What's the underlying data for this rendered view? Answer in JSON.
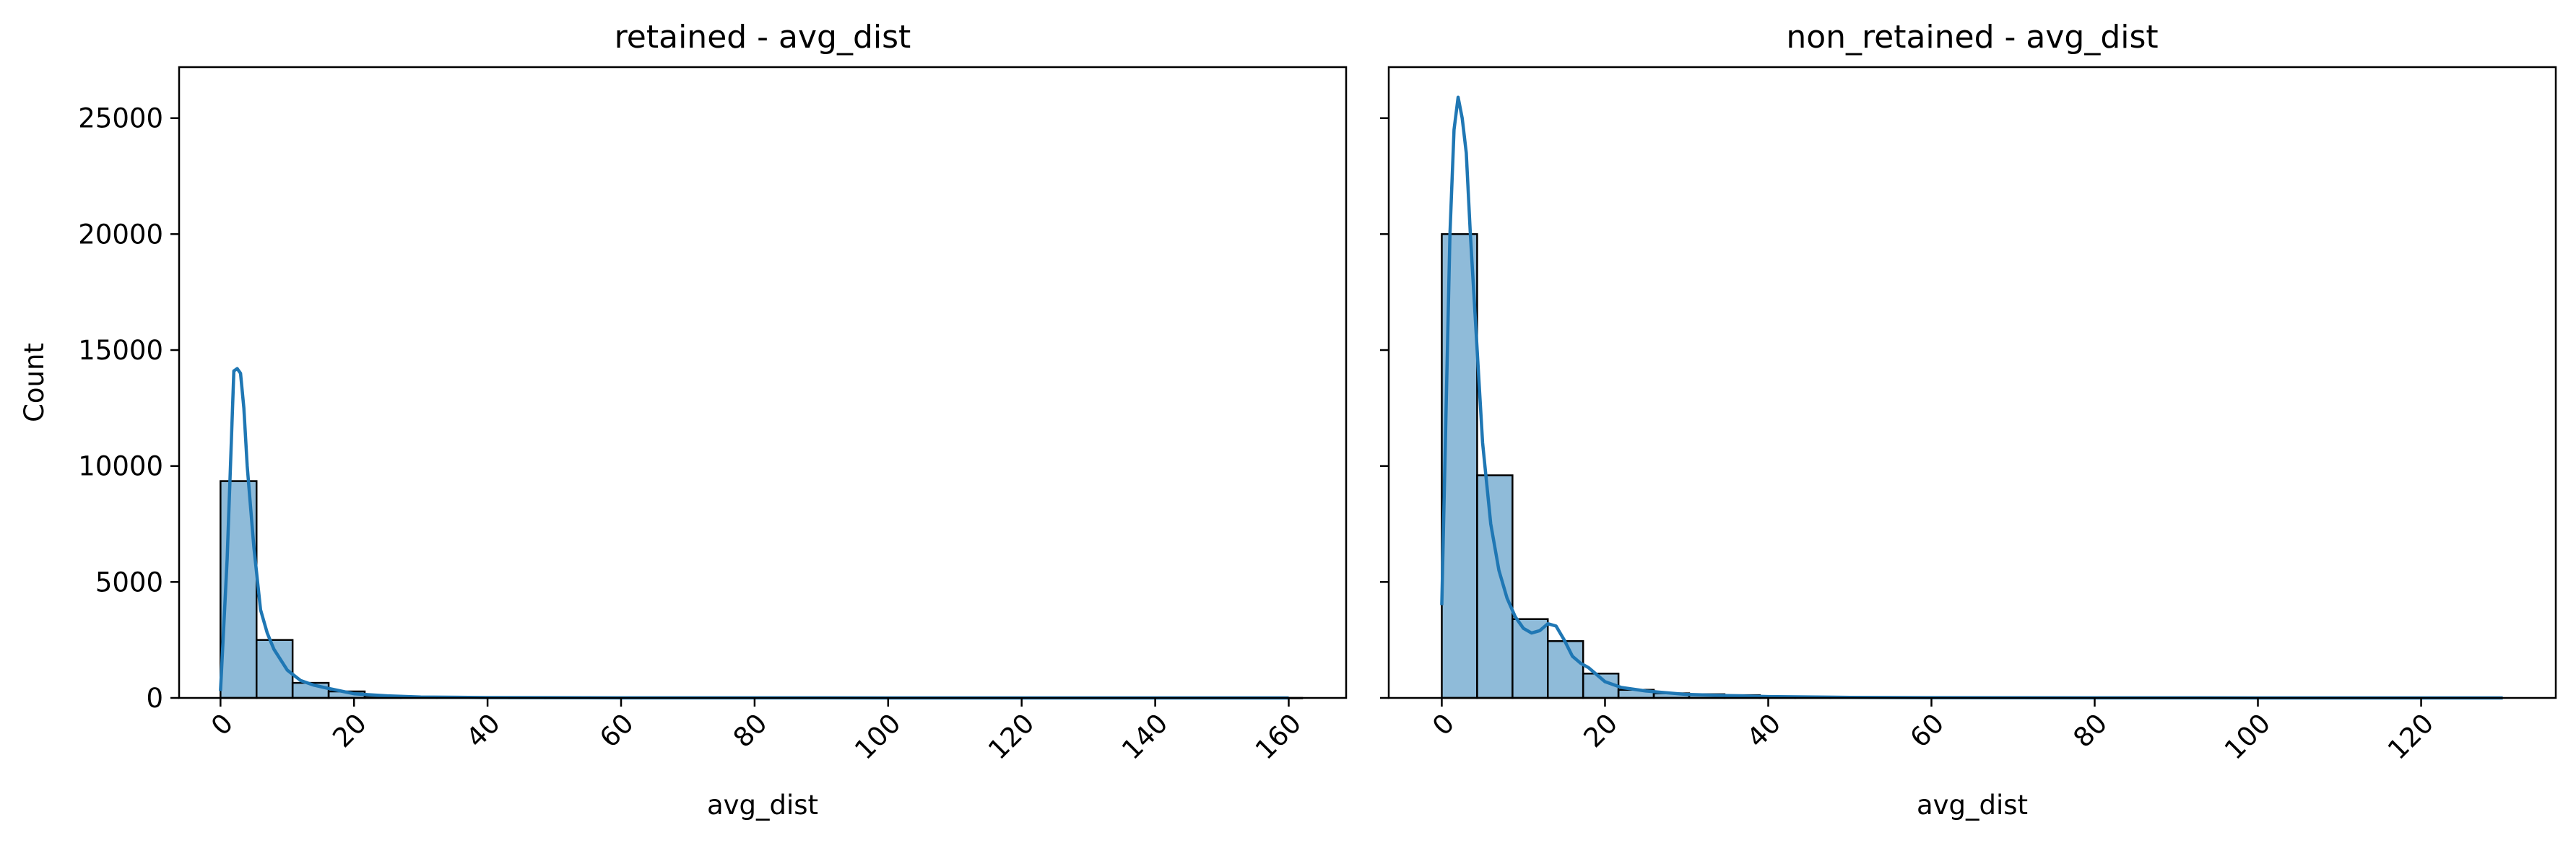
{
  "colors": {
    "bar_fill": "#1f77b4",
    "bar_edge": "#000000",
    "kde_line": "#1f77b4",
    "background": "#ffffff"
  },
  "shared_y": {
    "label": "Count",
    "ticks": [
      0,
      5000,
      10000,
      15000,
      20000,
      25000
    ],
    "ylim": [
      0,
      27200
    ]
  },
  "chart_data": [
    {
      "type": "bar",
      "subtype": "histogram-with-kde",
      "title": "retained - avg_dist",
      "xlabel": "avg_dist",
      "ylabel": "Count",
      "xlim": [
        -6.2,
        168.6
      ],
      "ylim": [
        0,
        27200
      ],
      "xticks": [
        0,
        20,
        40,
        60,
        80,
        100,
        120,
        140,
        160
      ],
      "bin_width": 5.4,
      "bins": [
        {
          "x0": 0.0,
          "count": 9350
        },
        {
          "x0": 5.4,
          "count": 2500
        },
        {
          "x0": 10.8,
          "count": 650
        },
        {
          "x0": 16.2,
          "count": 280
        },
        {
          "x0": 21.6,
          "count": 90
        },
        {
          "x0": 27.0,
          "count": 40
        },
        {
          "x0": 32.4,
          "count": 20
        },
        {
          "x0": 37.8,
          "count": 10
        },
        {
          "x0": 43.2,
          "count": 6
        },
        {
          "x0": 48.6,
          "count": 4
        },
        {
          "x0": 54.0,
          "count": 3
        },
        {
          "x0": 59.4,
          "count": 2
        },
        {
          "x0": 64.8,
          "count": 2
        },
        {
          "x0": 70.2,
          "count": 1
        },
        {
          "x0": 75.6,
          "count": 1
        },
        {
          "x0": 81.0,
          "count": 1
        },
        {
          "x0": 86.4,
          "count": 1
        },
        {
          "x0": 91.8,
          "count": 1
        },
        {
          "x0": 97.2,
          "count": 1
        },
        {
          "x0": 102.6,
          "count": 1
        },
        {
          "x0": 108.0,
          "count": 0
        },
        {
          "x0": 113.4,
          "count": 1
        },
        {
          "x0": 118.8,
          "count": 0
        },
        {
          "x0": 124.2,
          "count": 1
        },
        {
          "x0": 129.6,
          "count": 0
        },
        {
          "x0": 135.0,
          "count": 0
        },
        {
          "x0": 140.4,
          "count": 1
        },
        {
          "x0": 145.8,
          "count": 0
        },
        {
          "x0": 151.2,
          "count": 0
        },
        {
          "x0": 156.6,
          "count": 1
        }
      ],
      "kde": {
        "x": [
          0,
          1,
          2,
          2.5,
          3,
          3.5,
          4,
          5,
          6,
          7,
          8,
          10,
          12,
          14,
          16,
          18,
          20,
          25,
          30,
          40,
          60,
          80,
          100,
          120,
          140,
          160
        ],
        "y": [
          300,
          6000,
          14100,
          14200,
          14000,
          12500,
          10000,
          6500,
          3800,
          2800,
          2100,
          1200,
          750,
          550,
          420,
          300,
          180,
          90,
          40,
          15,
          5,
          3,
          2,
          1,
          1,
          0
        ]
      }
    },
    {
      "type": "bar",
      "subtype": "histogram-with-kde",
      "title": "non_retained - avg_dist",
      "xlabel": "avg_dist",
      "ylabel": "",
      "xlim": [
        -6.5,
        136.5
      ],
      "ylim": [
        0,
        27200
      ],
      "xticks": [
        0,
        20,
        40,
        60,
        80,
        100,
        120
      ],
      "bin_width": 4.33,
      "bins": [
        {
          "x0": 0.0,
          "count": 20000
        },
        {
          "x0": 4.33,
          "count": 9600
        },
        {
          "x0": 8.66,
          "count": 3400
        },
        {
          "x0": 12.99,
          "count": 2450
        },
        {
          "x0": 17.32,
          "count": 1050
        },
        {
          "x0": 21.65,
          "count": 350
        },
        {
          "x0": 25.98,
          "count": 200
        },
        {
          "x0": 30.31,
          "count": 160
        },
        {
          "x0": 34.64,
          "count": 120
        },
        {
          "x0": 38.97,
          "count": 70
        },
        {
          "x0": 43.3,
          "count": 40
        },
        {
          "x0": 47.63,
          "count": 25
        },
        {
          "x0": 51.96,
          "count": 15
        },
        {
          "x0": 56.29,
          "count": 10
        },
        {
          "x0": 60.62,
          "count": 8
        },
        {
          "x0": 64.95,
          "count": 6
        },
        {
          "x0": 69.28,
          "count": 5
        },
        {
          "x0": 73.61,
          "count": 4
        },
        {
          "x0": 77.94,
          "count": 3
        },
        {
          "x0": 82.27,
          "count": 2
        },
        {
          "x0": 86.6,
          "count": 2
        },
        {
          "x0": 90.93,
          "count": 1
        },
        {
          "x0": 95.26,
          "count": 1
        },
        {
          "x0": 99.59,
          "count": 1
        },
        {
          "x0": 103.92,
          "count": 1
        },
        {
          "x0": 108.25,
          "count": 0
        },
        {
          "x0": 112.58,
          "count": 1
        },
        {
          "x0": 116.91,
          "count": 0
        },
        {
          "x0": 121.24,
          "count": 0
        },
        {
          "x0": 125.57,
          "count": 1
        }
      ],
      "kde": {
        "x": [
          0,
          0.5,
          1,
          1.5,
          2,
          2.5,
          3,
          3.5,
          4,
          5,
          6,
          7,
          8,
          9,
          10,
          11,
          12,
          13,
          14,
          15,
          16,
          17,
          18,
          20,
          22,
          25,
          30,
          35,
          40,
          50,
          60,
          80,
          100,
          120,
          130
        ],
        "y": [
          4000,
          12000,
          20000,
          24500,
          25900,
          25000,
          23500,
          20000,
          17000,
          11000,
          7500,
          5500,
          4300,
          3500,
          3000,
          2800,
          2900,
          3200,
          3100,
          2500,
          1800,
          1500,
          1300,
          700,
          450,
          300,
          150,
          100,
          60,
          25,
          10,
          4,
          2,
          1,
          0
        ]
      }
    }
  ]
}
